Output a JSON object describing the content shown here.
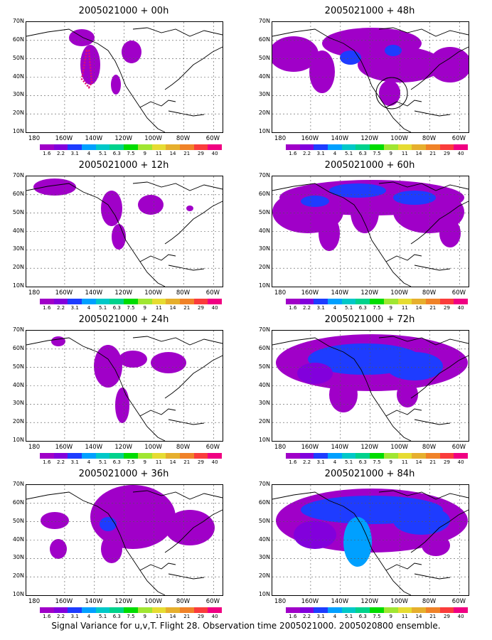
{
  "caption": "Signal Variance for u,v,T. Flight 28. Observation time 2005021000. 2005020800 ensemble.",
  "lat_labels": [
    "70N",
    "60N",
    "50N",
    "40N",
    "30N",
    "20N",
    "10N"
  ],
  "lon_labels": [
    "180",
    "160W",
    "140W",
    "120W",
    "100W",
    "80W",
    "60W"
  ],
  "colorbar": {
    "labels": [
      "1.6",
      "2.2",
      "3.1",
      "4",
      "5.1",
      "6.3",
      "7.5",
      "9",
      "11",
      "14",
      "21",
      "29",
      "40"
    ],
    "colors": [
      "#a000c8",
      "#8200dc",
      "#1e3cff",
      "#00a0ff",
      "#00c8c8",
      "#00d28c",
      "#00dc00",
      "#a0e632",
      "#e6dc32",
      "#e6af2d",
      "#f08228",
      "#fa3c3c",
      "#f00082"
    ]
  },
  "panels": [
    {
      "title": "2005021000 + 00h"
    },
    {
      "title": "2005021000 + 48h"
    },
    {
      "title": "2005021000 + 12h"
    },
    {
      "title": "2005021000 + 60h"
    },
    {
      "title": "2005021000 + 24h"
    },
    {
      "title": "2005021000 + 72h"
    },
    {
      "title": "2005021000 + 36h"
    },
    {
      "title": "2005021000 + 84h"
    }
  ]
}
